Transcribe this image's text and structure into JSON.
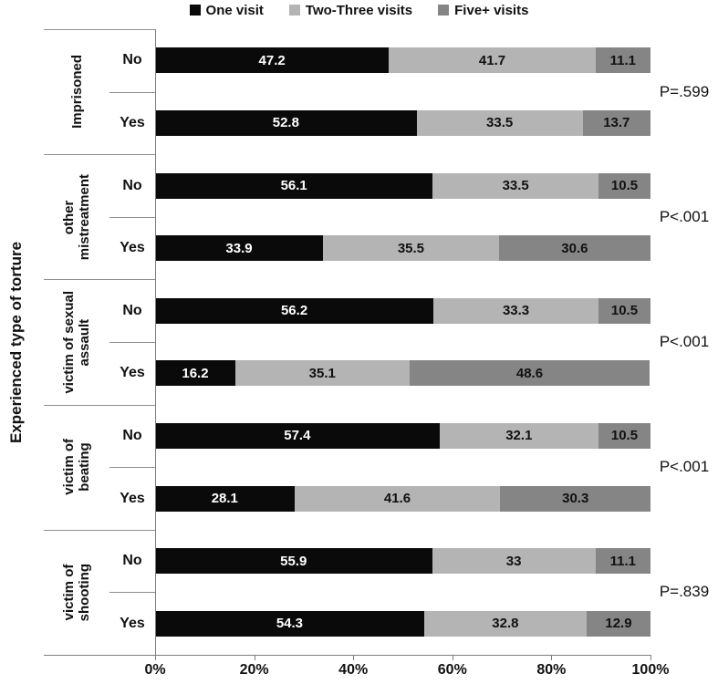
{
  "chart_data": {
    "type": "bar",
    "stacked": true,
    "orientation": "horizontal",
    "percent_scale": true,
    "ylabel": "Experienced type of torture",
    "xlabel": "",
    "xlim": [
      0,
      100
    ],
    "x_ticks": [
      "0%",
      "20%",
      "40%",
      "60%",
      "80%",
      "100%"
    ],
    "grid": false,
    "legend_position": "top",
    "series_names": [
      "One visit",
      "Two-Three visits",
      "Five+ visits"
    ],
    "series_keys": [
      "one-visit",
      "two-three-visits",
      "five-plus-visits"
    ],
    "series_colors": [
      "#0a0a0a",
      "#b4b4b4",
      "#858585"
    ],
    "colors": {
      "separator_line": "#8f8f8f",
      "axis_line": "#7f7f7f",
      "label_on_dark": "#ffffff",
      "label_on_light": "#111111"
    },
    "groups": [
      {
        "category": "Imprisoned",
        "lines": [
          "Imprisoned"
        ],
        "p_value": "P=.599",
        "rows": [
          {
            "label": "No",
            "values": [
              47.2,
              41.7,
              11.1
            ],
            "labels": [
              "47.2",
              "41.7",
              "11.1"
            ]
          },
          {
            "label": "Yes",
            "values": [
              52.8,
              33.5,
              13.7
            ],
            "labels": [
              "52.8",
              "33.5",
              "13.7"
            ]
          }
        ]
      },
      {
        "category": "other mistreatment",
        "lines": [
          "other",
          "mistreatment"
        ],
        "p_value": "P<.001",
        "rows": [
          {
            "label": "No",
            "values": [
              56.1,
              33.5,
              10.5
            ],
            "labels": [
              "56.1",
              "33.5",
              "10.5"
            ]
          },
          {
            "label": "Yes",
            "values": [
              33.9,
              35.5,
              30.6
            ],
            "labels": [
              "33.9",
              "35.5",
              "30.6"
            ]
          }
        ]
      },
      {
        "category": "victim of sexual assault",
        "lines": [
          "victim of sexual",
          "assault"
        ],
        "p_value": "P<.001",
        "rows": [
          {
            "label": "No",
            "values": [
              56.2,
              33.3,
              10.5
            ],
            "labels": [
              "56.2",
              "33.3",
              "10.5"
            ]
          },
          {
            "label": "Yes",
            "values": [
              16.2,
              35.1,
              48.6
            ],
            "labels": [
              "16.2",
              "35.1",
              "48.6"
            ]
          }
        ]
      },
      {
        "category": "victim of beating",
        "lines": [
          "victim of",
          "beating"
        ],
        "p_value": "P<.001",
        "rows": [
          {
            "label": "No",
            "values": [
              57.4,
              32.1,
              10.5
            ],
            "labels": [
              "57.4",
              "32.1",
              "10.5"
            ]
          },
          {
            "label": "Yes",
            "values": [
              28.1,
              41.6,
              30.3
            ],
            "labels": [
              "28.1",
              "41.6",
              "30.3"
            ]
          }
        ]
      },
      {
        "category": "victim of shooting",
        "lines": [
          "victim of",
          "shooting"
        ],
        "p_value": "P=.839",
        "rows": [
          {
            "label": "No",
            "values": [
              55.9,
              33,
              11.1
            ],
            "labels": [
              "55.9",
              "33",
              "11.1"
            ]
          },
          {
            "label": "Yes",
            "values": [
              54.3,
              32.8,
              12.9
            ],
            "labels": [
              "54.3",
              "32.8",
              "12.9"
            ]
          }
        ]
      }
    ]
  }
}
